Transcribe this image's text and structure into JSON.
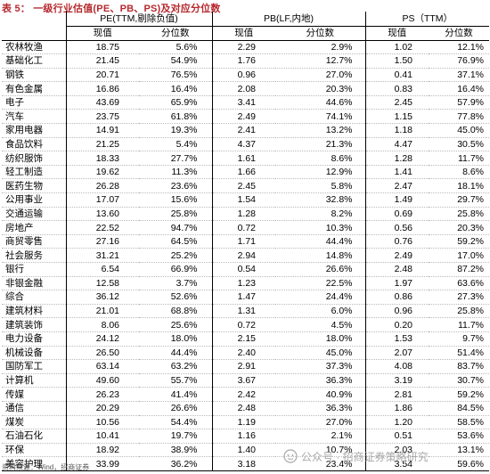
{
  "title": "表 5： 一级行业估值(PE、PB、PS)及对应分位数",
  "groups": [
    "PE(TTM,剔除负值)",
    "PB(LF,内地)",
    "PS（TTM）"
  ],
  "subheaders": [
    "现值",
    "分位数",
    "现值",
    "分位数",
    "现值",
    "分位数"
  ],
  "rows": [
    {
      "industry": "农林牧渔",
      "pe": "18.75",
      "pe_pct": "5.6%",
      "pb": "2.29",
      "pb_pct": "2.9%",
      "ps": "1.02",
      "ps_pct": "12.1%"
    },
    {
      "industry": "基础化工",
      "pe": "21.45",
      "pe_pct": "54.9%",
      "pb": "1.76",
      "pb_pct": "12.7%",
      "ps": "1.50",
      "ps_pct": "76.9%"
    },
    {
      "industry": "钢铁",
      "pe": "20.71",
      "pe_pct": "76.5%",
      "pb": "0.96",
      "pb_pct": "27.0%",
      "ps": "0.41",
      "ps_pct": "37.1%"
    },
    {
      "industry": "有色金属",
      "pe": "16.86",
      "pe_pct": "16.4%",
      "pb": "2.08",
      "pb_pct": "20.3%",
      "ps": "0.83",
      "ps_pct": "16.4%"
    },
    {
      "industry": "电子",
      "pe": "43.69",
      "pe_pct": "65.9%",
      "pb": "3.41",
      "pb_pct": "44.6%",
      "ps": "2.45",
      "ps_pct": "57.9%"
    },
    {
      "industry": "汽车",
      "pe": "23.75",
      "pe_pct": "61.8%",
      "pb": "2.49",
      "pb_pct": "74.1%",
      "ps": "1.15",
      "ps_pct": "77.8%"
    },
    {
      "industry": "家用电器",
      "pe": "14.91",
      "pe_pct": "19.3%",
      "pb": "2.41",
      "pb_pct": "13.2%",
      "ps": "1.18",
      "ps_pct": "45.0%"
    },
    {
      "industry": "食品饮料",
      "pe": "21.25",
      "pe_pct": "5.4%",
      "pb": "4.37",
      "pb_pct": "21.3%",
      "ps": "4.47",
      "ps_pct": "30.5%"
    },
    {
      "industry": "纺织服饰",
      "pe": "18.33",
      "pe_pct": "27.7%",
      "pb": "1.61",
      "pb_pct": "8.6%",
      "ps": "1.28",
      "ps_pct": "11.7%"
    },
    {
      "industry": "轻工制造",
      "pe": "19.62",
      "pe_pct": "11.3%",
      "pb": "1.66",
      "pb_pct": "12.9%",
      "ps": "1.41",
      "ps_pct": "8.6%"
    },
    {
      "industry": "医药生物",
      "pe": "26.28",
      "pe_pct": "23.6%",
      "pb": "2.45",
      "pb_pct": "5.8%",
      "ps": "2.47",
      "ps_pct": "18.1%"
    },
    {
      "industry": "公用事业",
      "pe": "17.07",
      "pe_pct": "15.6%",
      "pb": "1.54",
      "pb_pct": "32.8%",
      "ps": "1.49",
      "ps_pct": "29.7%"
    },
    {
      "industry": "交通运输",
      "pe": "13.60",
      "pe_pct": "25.8%",
      "pb": "1.28",
      "pb_pct": "8.2%",
      "ps": "0.69",
      "ps_pct": "25.8%"
    },
    {
      "industry": "房地产",
      "pe": "22.52",
      "pe_pct": "94.7%",
      "pb": "0.72",
      "pb_pct": "10.3%",
      "ps": "0.56",
      "ps_pct": "20.3%"
    },
    {
      "industry": "商贸零售",
      "pe": "27.16",
      "pe_pct": "64.5%",
      "pb": "1.71",
      "pb_pct": "44.4%",
      "ps": "0.76",
      "ps_pct": "59.2%"
    },
    {
      "industry": "社会服务",
      "pe": "31.21",
      "pe_pct": "25.2%",
      "pb": "2.94",
      "pb_pct": "14.8%",
      "ps": "2.49",
      "ps_pct": "17.0%"
    },
    {
      "industry": "银行",
      "pe": "6.54",
      "pe_pct": "66.9%",
      "pb": "0.54",
      "pb_pct": "26.6%",
      "ps": "2.48",
      "ps_pct": "87.2%"
    },
    {
      "industry": "非银金融",
      "pe": "12.58",
      "pe_pct": "3.7%",
      "pb": "1.23",
      "pb_pct": "22.5%",
      "ps": "1.97",
      "ps_pct": "63.6%"
    },
    {
      "industry": "综合",
      "pe": "36.12",
      "pe_pct": "52.6%",
      "pb": "1.47",
      "pb_pct": "24.4%",
      "ps": "0.86",
      "ps_pct": "27.3%"
    },
    {
      "industry": "建筑材料",
      "pe": "21.01",
      "pe_pct": "68.8%",
      "pb": "1.31",
      "pb_pct": "6.0%",
      "ps": "0.96",
      "ps_pct": "25.8%"
    },
    {
      "industry": "建筑装饰",
      "pe": "8.06",
      "pe_pct": "25.6%",
      "pb": "0.72",
      "pb_pct": "4.5%",
      "ps": "0.20",
      "ps_pct": "11.7%"
    },
    {
      "industry": "电力设备",
      "pe": "24.12",
      "pe_pct": "18.0%",
      "pb": "2.15",
      "pb_pct": "18.0%",
      "ps": "1.53",
      "ps_pct": "9.7%"
    },
    {
      "industry": "机械设备",
      "pe": "26.50",
      "pe_pct": "44.4%",
      "pb": "2.40",
      "pb_pct": "45.0%",
      "ps": "2.07",
      "ps_pct": "51.4%"
    },
    {
      "industry": "国防军工",
      "pe": "63.14",
      "pe_pct": "63.2%",
      "pb": "2.91",
      "pb_pct": "37.3%",
      "ps": "4.08",
      "ps_pct": "83.7%"
    },
    {
      "industry": "计算机",
      "pe": "49.60",
      "pe_pct": "55.7%",
      "pb": "3.67",
      "pb_pct": "36.3%",
      "ps": "3.19",
      "ps_pct": "30.7%"
    },
    {
      "industry": "传媒",
      "pe": "26.23",
      "pe_pct": "41.4%",
      "pb": "2.42",
      "pb_pct": "40.9%",
      "ps": "2.81",
      "ps_pct": "59.2%"
    },
    {
      "industry": "通信",
      "pe": "20.29",
      "pe_pct": "26.6%",
      "pb": "2.48",
      "pb_pct": "36.3%",
      "ps": "1.86",
      "ps_pct": "84.5%"
    },
    {
      "industry": "煤炭",
      "pe": "10.56",
      "pe_pct": "54.4%",
      "pb": "1.19",
      "pb_pct": "27.0%",
      "ps": "1.20",
      "ps_pct": "58.5%"
    },
    {
      "industry": "石油石化",
      "pe": "10.41",
      "pe_pct": "19.7%",
      "pb": "1.16",
      "pb_pct": "2.1%",
      "ps": "0.51",
      "ps_pct": "53.6%"
    },
    {
      "industry": "环保",
      "pe": "18.92",
      "pe_pct": "38.9%",
      "pb": "1.40",
      "pb_pct": "10.7%",
      "ps": "2.03",
      "ps_pct": "13.1%"
    },
    {
      "industry": "美容护理",
      "pe": "33.99",
      "pe_pct": "36.2%",
      "pb": "3.18",
      "pb_pct": "23.4%",
      "ps": "3.54",
      "ps_pct": "59.6%"
    }
  ],
  "source": "资料来源：Wind，招商证券",
  "watermark": "公众号 · 招商证券策略研究"
}
